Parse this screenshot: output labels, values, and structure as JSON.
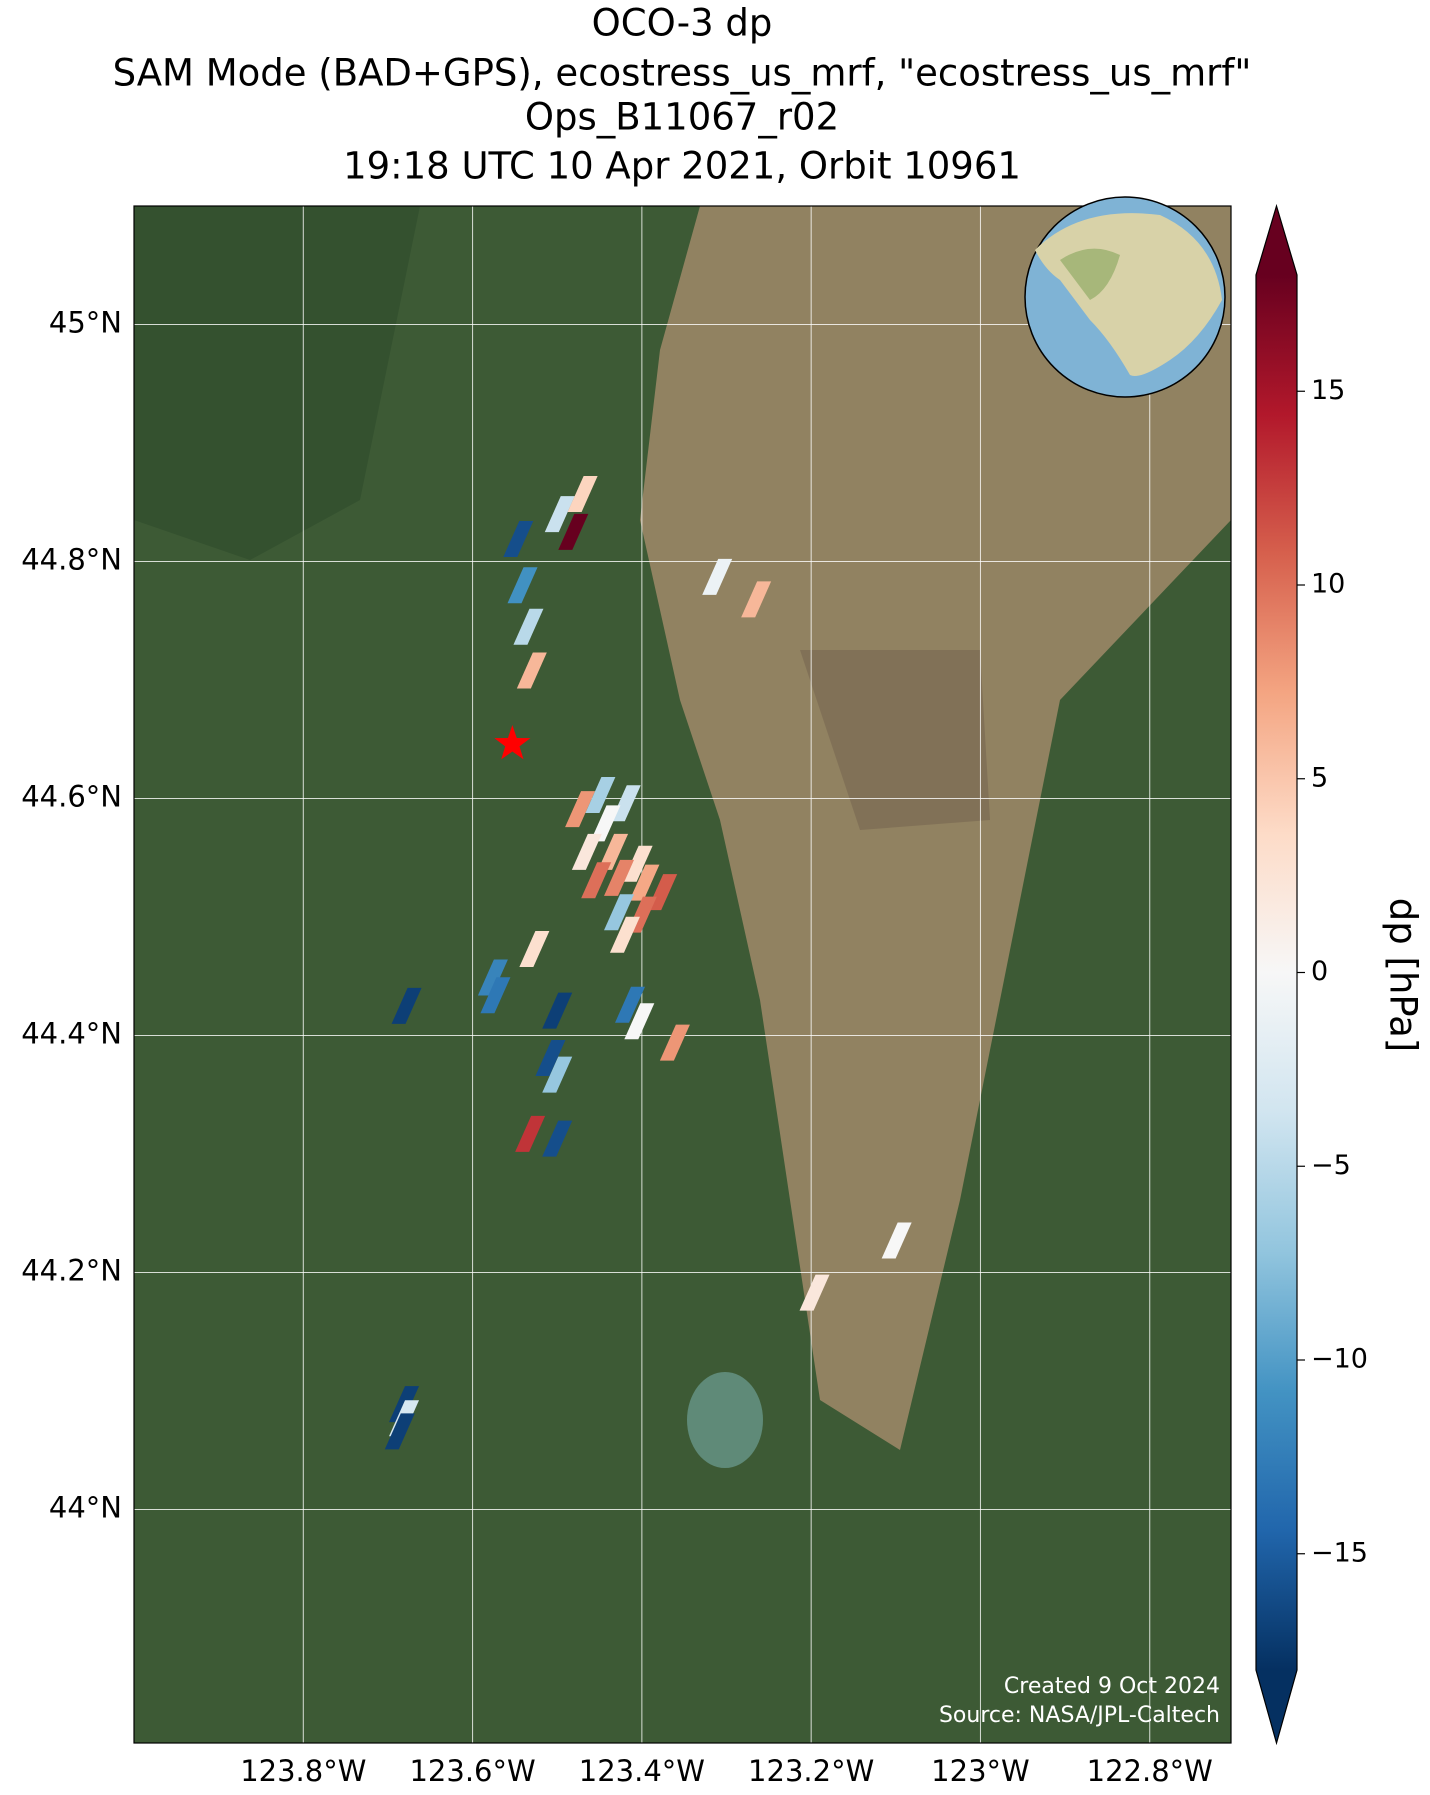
{
  "chart_data": {
    "type": "map",
    "title": [
      "OCO-3 dp",
      "SAM Mode (BAD+GPS), ecostress_us_mrf, \"ecostress_us_mrf\"",
      "Ops_B11067_r02",
      "19:18 UTC 10 Apr 2021, Orbit 10961"
    ],
    "xlim": [
      -124.0,
      -122.704
    ],
    "ylim": [
      43.803,
      45.1
    ],
    "xticks": [
      {
        "value": -123.8,
        "label": "123.8°W"
      },
      {
        "value": -123.6,
        "label": "123.6°W"
      },
      {
        "value": -123.4,
        "label": "123.4°W"
      },
      {
        "value": -123.2,
        "label": "123.2°W"
      },
      {
        "value": -123,
        "label": "123°W"
      },
      {
        "value": -122.8,
        "label": "122.8°W"
      }
    ],
    "yticks": [
      {
        "value": 44,
        "label": "44°N"
      },
      {
        "value": 44.2,
        "label": "44.2°N"
      },
      {
        "value": 44.4,
        "label": "44.4°N"
      },
      {
        "value": 44.6,
        "label": "44.6°N"
      },
      {
        "value": 44.8,
        "label": "44.8°N"
      },
      {
        "value": 45,
        "label": "45°N"
      }
    ],
    "grid": true,
    "soundings": {
      "lon": [
        -123.546,
        -123.497,
        -123.47,
        -123.481,
        -123.541,
        -123.534,
        -123.53,
        -123.311,
        -123.265,
        -123.473,
        -123.449,
        -123.419,
        -123.443,
        -123.465,
        -123.434,
        -123.405,
        -123.454,
        -123.427,
        -123.397,
        -123.376,
        -123.427,
        -123.4,
        -123.42,
        -123.527,
        -123.576,
        -123.573,
        -123.678,
        -123.5,
        -123.414,
        -123.403,
        -123.361,
        -123.508,
        -123.5,
        -123.532,
        -123.5,
        -123.099,
        -123.196,
        -123.681,
        -123.681,
        -123.686
      ],
      "lat": [
        44.819,
        44.84,
        44.857,
        44.825,
        44.78,
        44.745,
        44.708,
        44.787,
        44.768,
        44.591,
        44.603,
        44.596,
        44.579,
        44.555,
        44.555,
        44.545,
        44.531,
        44.533,
        44.529,
        44.521,
        44.504,
        44.502,
        44.485,
        44.473,
        44.449,
        44.434,
        44.425,
        44.421,
        44.426,
        44.412,
        44.394,
        44.381,
        44.367,
        44.317,
        44.313,
        44.227,
        44.183,
        44.089,
        44.077,
        44.066
      ],
      "values": [
        -16,
        -4,
        4,
        18,
        -11,
        -5,
        6,
        -1,
        6,
        8,
        -6,
        -4,
        0,
        2,
        6,
        3,
        10,
        9,
        7,
        11,
        -7,
        10,
        3,
        3,
        -12,
        -13,
        -17,
        -17,
        -13,
        0,
        8,
        -16,
        -7,
        13,
        -16,
        0,
        2,
        -17,
        -3,
        -17
      ]
    },
    "target": {
      "lon": -123.553,
      "lat": 44.646,
      "color": "#ff0000"
    },
    "colorbar": {
      "label": "dp [hPa]",
      "clim": [
        -18,
        18
      ],
      "ticks": [
        {
          "value": -15,
          "label": "−15"
        },
        {
          "value": -10,
          "label": "−10"
        },
        {
          "value": -5,
          "label": "−5"
        },
        0,
        5,
        10,
        15
      ]
    },
    "annotations": [
      "Created 9 Oct 2024",
      "Source: NASA/JPL-Caltech"
    ]
  }
}
